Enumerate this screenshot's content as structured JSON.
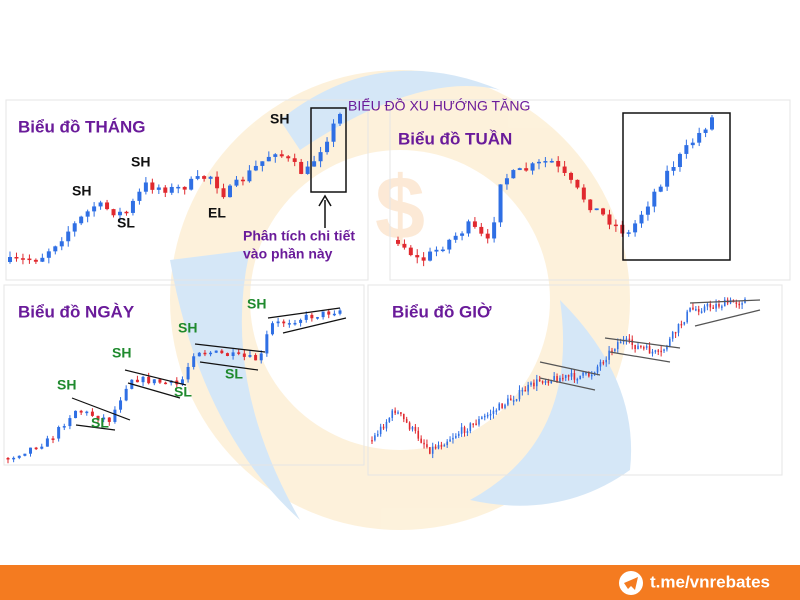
{
  "panels": [
    {
      "title": "Biểu đồ THÁNG",
      "labels": [
        "SH",
        "SH",
        "SL",
        "EL",
        "SH"
      ]
    },
    {
      "title": "Biểu đồ TUẦN"
    },
    {
      "title": "Biểu đồ NGÀY",
      "labels": [
        "SH",
        "SL",
        "SH",
        "SL",
        "SH",
        "SL",
        "SH"
      ]
    },
    {
      "title": "Biểu đồ GIỜ"
    }
  ],
  "callouts": {
    "trend": "BIỂU ĐỒ XU HƯỚNG TĂNG",
    "detail": [
      "Phân tích chi tiết",
      "vào phần này"
    ]
  },
  "footer": {
    "link": "t.me/vnrebates"
  }
}
